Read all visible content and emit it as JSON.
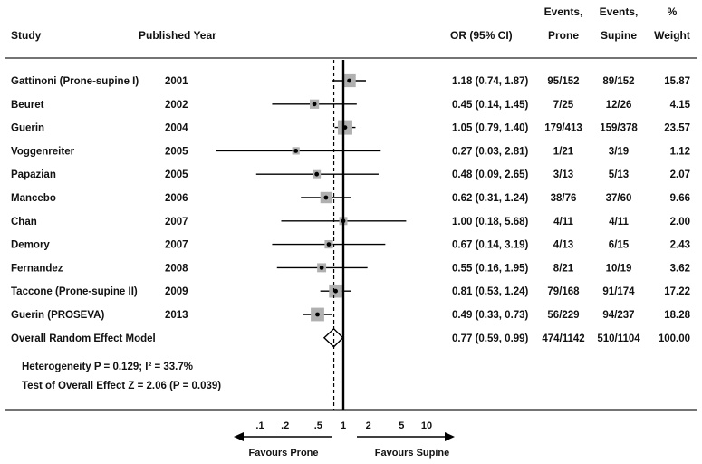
{
  "chart_data": {
    "type": "forest",
    "x_scale": "log",
    "xlim": [
      0.05,
      20
    ],
    "null_value": 1,
    "pooled_reference": 0.77,
    "x_ticks": [
      0.1,
      0.2,
      0.5,
      1,
      2,
      5,
      10
    ],
    "x_tick_labels": [
      ".1",
      ".2",
      ".5",
      "1",
      "2",
      "5",
      "10"
    ],
    "headers": {
      "study": "Study",
      "year": "Published Year",
      "or": "OR (95% CI)",
      "events_prone_1": "Events,",
      "events_prone_2": "Prone",
      "events_supine_1": "Events,",
      "events_supine_2": "Supine",
      "weight_1": "%",
      "weight_2": "Weight"
    },
    "studies": [
      {
        "study": "Gattinoni (Prone-supine I)",
        "year": "2001",
        "or": 1.18,
        "lo": 0.74,
        "hi": 1.87,
        "ci_text": "1.18 (0.74, 1.87)",
        "prone": "95/152",
        "supine": "89/152",
        "weight": 15.87,
        "weight_text": "15.87"
      },
      {
        "study": "Beuret",
        "year": "2002",
        "or": 0.45,
        "lo": 0.14,
        "hi": 1.45,
        "ci_text": "0.45 (0.14, 1.45)",
        "prone": "7/25",
        "supine": "12/26",
        "weight": 4.15,
        "weight_text": "4.15"
      },
      {
        "study": "Guerin",
        "year": "2004",
        "or": 1.05,
        "lo": 0.79,
        "hi": 1.4,
        "ci_text": "1.05 (0.79, 1.40)",
        "prone": "179/413",
        "supine": "159/378",
        "weight": 23.57,
        "weight_text": "23.57"
      },
      {
        "study": "Voggenreiter",
        "year": "2005",
        "or": 0.27,
        "lo": 0.03,
        "hi": 2.81,
        "ci_text": "0.27 (0.03, 2.81)",
        "prone": "1/21",
        "supine": "3/19",
        "weight": 1.12,
        "weight_text": "1.12"
      },
      {
        "study": "Papazian",
        "year": "2005",
        "or": 0.48,
        "lo": 0.09,
        "hi": 2.65,
        "ci_text": "0.48 (0.09, 2.65)",
        "prone": "3/13",
        "supine": "5/13",
        "weight": 2.07,
        "weight_text": "2.07"
      },
      {
        "study": "Mancebo",
        "year": "2006",
        "or": 0.62,
        "lo": 0.31,
        "hi": 1.24,
        "ci_text": "0.62 (0.31, 1.24)",
        "prone": "38/76",
        "supine": "37/60",
        "weight": 9.66,
        "weight_text": "9.66"
      },
      {
        "study": "Chan",
        "year": "2007",
        "or": 1.0,
        "lo": 0.18,
        "hi": 5.68,
        "ci_text": "1.00 (0.18, 5.68)",
        "prone": "4/11",
        "supine": "4/11",
        "weight": 2.0,
        "weight_text": "2.00"
      },
      {
        "study": "Demory",
        "year": "2007",
        "or": 0.67,
        "lo": 0.14,
        "hi": 3.19,
        "ci_text": "0.67 (0.14, 3.19)",
        "prone": "4/13",
        "supine": "6/15",
        "weight": 2.43,
        "weight_text": "2.43"
      },
      {
        "study": "Fernandez",
        "year": "2008",
        "or": 0.55,
        "lo": 0.16,
        "hi": 1.95,
        "ci_text": "0.55 (0.16, 1.95)",
        "prone": "8/21",
        "supine": "10/19",
        "weight": 3.62,
        "weight_text": "3.62"
      },
      {
        "study": "Taccone (Prone-supine II)",
        "year": "2009",
        "or": 0.81,
        "lo": 0.53,
        "hi": 1.24,
        "ci_text": "0.81 (0.53, 1.24)",
        "prone": "79/168",
        "supine": "91/174",
        "weight": 17.22,
        "weight_text": "17.22"
      },
      {
        "study": "Guerin (PROSEVA)",
        "year": "2013",
        "or": 0.49,
        "lo": 0.33,
        "hi": 0.73,
        "ci_text": "0.49 (0.33, 0.73)",
        "prone": "56/229",
        "supine": "94/237",
        "weight": 18.28,
        "weight_text": "18.28"
      }
    ],
    "overall": {
      "study": "Overall  Random Effect Model",
      "or": 0.77,
      "lo": 0.59,
      "hi": 0.99,
      "ci_text": "0.77 (0.59, 0.99)",
      "prone": "474/1142",
      "supine": "510/1104",
      "weight": 100.0,
      "weight_text": "100.00"
    },
    "heterogeneity": "Heterogeneity P = 0.129; I² = 33.7%",
    "overall_test": "Test of Overall Effect Z = 2.06 (P = 0.039)",
    "favours_left": "Favours Prone",
    "favours_right": "Favours Supine"
  }
}
